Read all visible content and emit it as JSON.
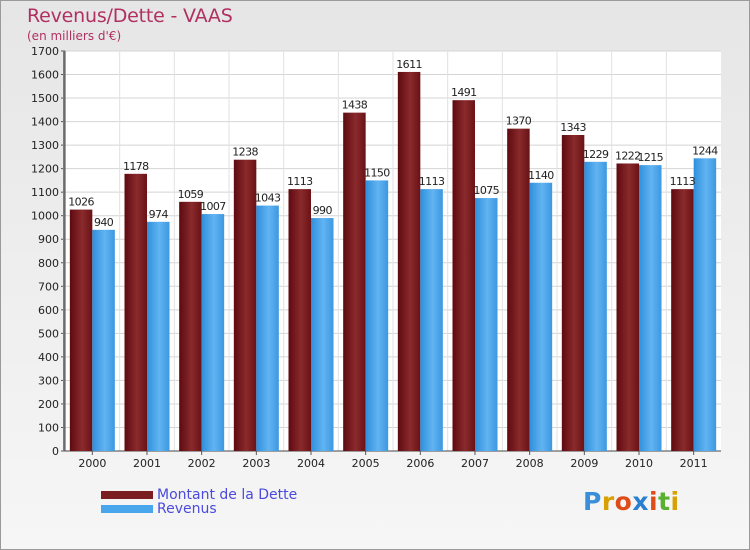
{
  "title": "Revenus/Dette - VAAS",
  "subtitle": "(en milliers d'€)",
  "legend": [
    {
      "label": "Montant de la Dette",
      "color": "#7a1e22"
    },
    {
      "label": "Revenus",
      "color": "#4aa6ec"
    }
  ],
  "logo": {
    "text": "Proxiti",
    "letter_colors": [
      "#3a8fd8",
      "#d8a000",
      "#e04b1a",
      "#2a7fd0",
      "#e04b1a",
      "#58b030",
      "#d8a000"
    ]
  },
  "chart_data": {
    "type": "bar",
    "title": "Revenus/Dette - VAAS",
    "subtitle": "(en milliers d'€)",
    "categories": [
      "2000",
      "2001",
      "2002",
      "2003",
      "2004",
      "2005",
      "2006",
      "2007",
      "2008",
      "2009",
      "2010",
      "2011"
    ],
    "series": [
      {
        "name": "Montant de la Dette",
        "color": "#7a1e22",
        "values": [
          1026,
          1178,
          1059,
          1238,
          1113,
          1438,
          1611,
          1491,
          1370,
          1343,
          1222,
          1113
        ]
      },
      {
        "name": "Revenus",
        "color": "#4aa6ec",
        "values": [
          940,
          974,
          1007,
          1043,
          990,
          1150,
          1113,
          1075,
          1140,
          1229,
          1215,
          1244
        ]
      }
    ],
    "ylim": [
      0,
      1700
    ],
    "ytick_step": 100,
    "grid": true,
    "legend_position": "bottom-left"
  }
}
